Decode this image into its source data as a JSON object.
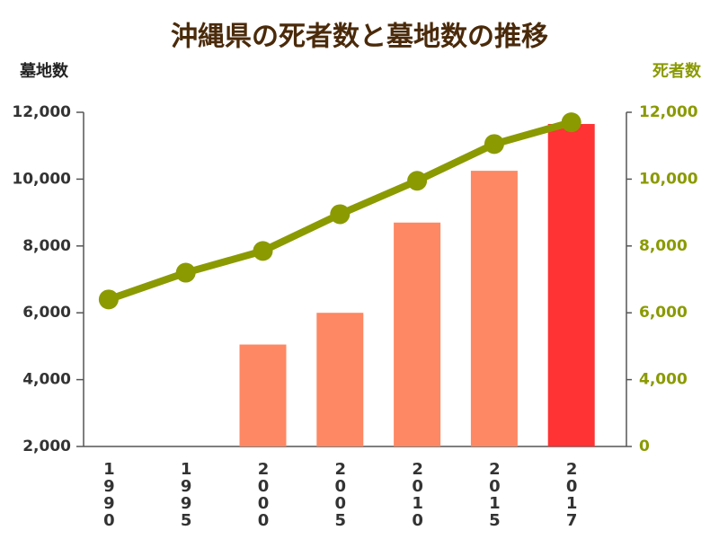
{
  "chart_data": {
    "type": "bar_line",
    "title": "沖縄県の死者数と墓地数の推移",
    "y_label": "墓地数",
    "y2_label": "死者数",
    "categories": [
      "1990",
      "1995",
      "2000",
      "2005",
      "2010",
      "2015",
      "2017"
    ],
    "series": [
      {
        "name": "墓地数",
        "type": "bar",
        "color": "#fd8863",
        "highlight_color": "#ff3333",
        "highlight_index": 6,
        "values": [
          null,
          null,
          5050,
          6000,
          8700,
          10250,
          11650
        ]
      },
      {
        "name": "死者数",
        "type": "line",
        "axis": "y2",
        "color": "#8a9a00",
        "values": [
          6400,
          7200,
          7850,
          8950,
          9950,
          11050,
          11700
        ]
      }
    ],
    "ylim": [
      2000,
      12000
    ],
    "yticks": [
      {
        "value": 2000,
        "label": "2,000"
      },
      {
        "value": 4000,
        "label": "4,000"
      },
      {
        "value": 6000,
        "label": "6,000"
      },
      {
        "value": 8000,
        "label": "8,000"
      },
      {
        "value": 10000,
        "label": "10,000"
      },
      {
        "value": 12000,
        "label": "12,000"
      }
    ],
    "y2lim": [
      2000,
      12000
    ],
    "y2_axis_break": true,
    "y2ticks": [
      0,
      {
        "value": 4000,
        "label": "4,000"
      },
      {
        "value": 6000,
        "label": "6,000"
      },
      {
        "value": 8000,
        "label": "8,000"
      },
      {
        "value": 10000,
        "label": "10,000"
      },
      {
        "value": 12000,
        "label": "12,000"
      }
    ]
  }
}
